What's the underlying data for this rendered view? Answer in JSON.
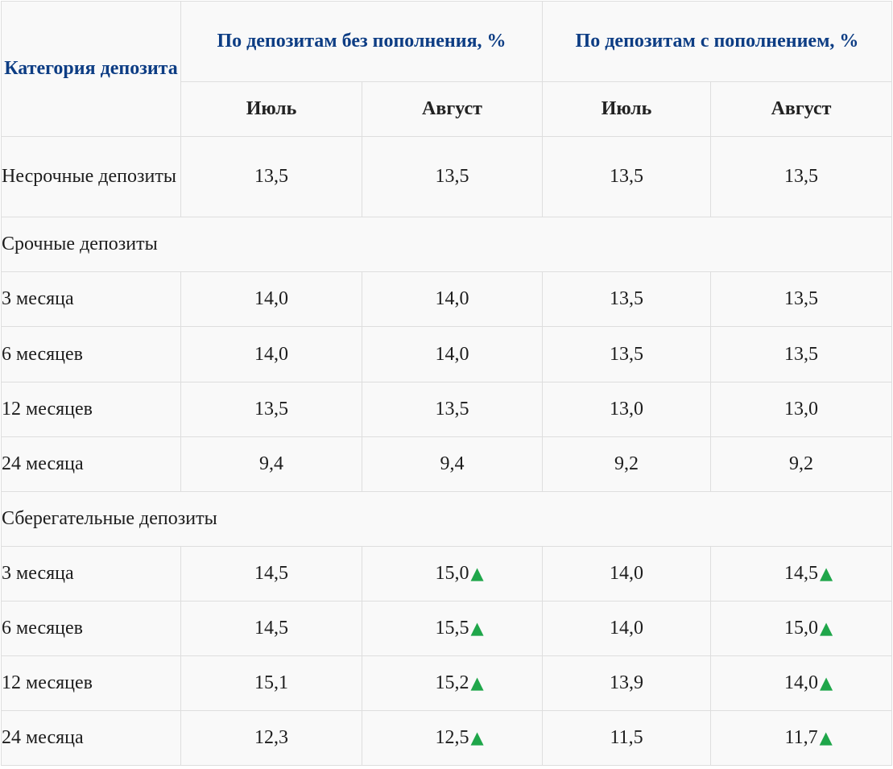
{
  "colors": {
    "header_text": "#0d3d84",
    "up_arrow": "#1fa64a",
    "border": "#dedede",
    "background": "#f9f9f9"
  },
  "up_icon_glyph": "▲",
  "header": {
    "category": "Категория депозита",
    "group_no_topup": "По депозитам без пополнения, %",
    "group_topup": "По депозитам с пополнением, %",
    "months": [
      "Июль",
      "Август",
      "Июль",
      "Август"
    ]
  },
  "demand": {
    "label": "Несрочные депозиты",
    "values": [
      "13,5",
      "13,5",
      "13,5",
      "13,5"
    ]
  },
  "term": {
    "section_label": "Срочные депозиты",
    "rows": [
      {
        "label": "3 месяца",
        "values": [
          "14,0",
          "14,0",
          "13,5",
          "13,5"
        ]
      },
      {
        "label": "6 месяцев",
        "values": [
          "14,0",
          "14,0",
          "13,5",
          "13,5"
        ]
      },
      {
        "label": "12 месяцев",
        "values": [
          "13,5",
          "13,5",
          "13,0",
          "13,0"
        ]
      },
      {
        "label": "24 месяца",
        "values": [
          "9,4",
          "9,4",
          "9,2",
          "9,2"
        ]
      }
    ]
  },
  "savings": {
    "section_label": "Сберегательные депозиты",
    "rows": [
      {
        "label": "3 месяца",
        "values": [
          "14,5",
          "15,0",
          "14,0",
          "14,5"
        ]
      },
      {
        "label": "6 месяцев",
        "values": [
          "14,5",
          "15,5",
          "14,0",
          "15,0"
        ]
      },
      {
        "label": "12 месяцев",
        "values": [
          "15,1",
          "15,2",
          "13,9",
          "14,0"
        ]
      },
      {
        "label": "24 месяца",
        "values": [
          "12,3",
          "12,5",
          "11,5",
          "11,7"
        ]
      }
    ]
  }
}
